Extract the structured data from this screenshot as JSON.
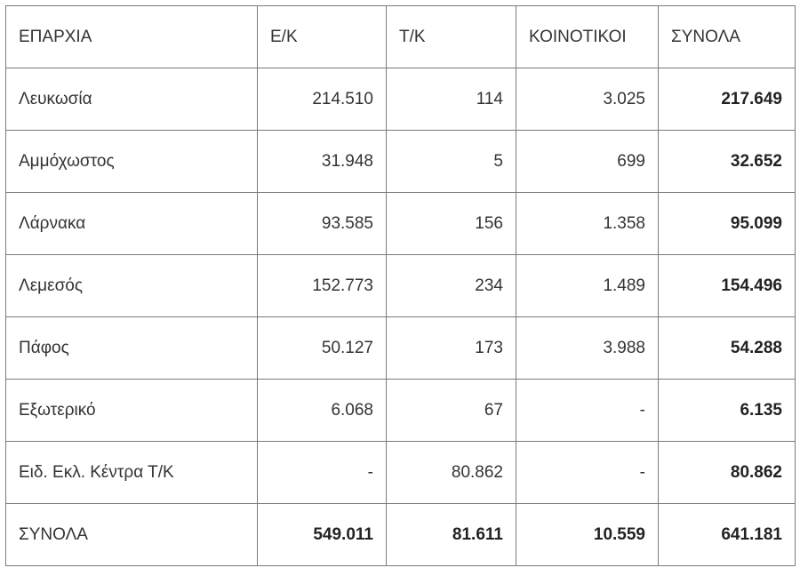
{
  "table": {
    "headers": [
      "ΕΠΑΡΧΙΑ",
      "Ε/Κ",
      "Τ/Κ",
      "ΚΟΙΝΟΤΙΚΟΙ",
      "ΣΥΝΟΛΑ"
    ],
    "rows": [
      [
        "Λευκωσία",
        "214.510",
        "114",
        "3.025",
        "217.649"
      ],
      [
        "Αμμόχωστος",
        "31.948",
        "5",
        "699",
        "32.652"
      ],
      [
        "Λάρνακα",
        "93.585",
        "156",
        "1.358",
        "95.099"
      ],
      [
        "Λεμεσός",
        "152.773",
        "234",
        "1.489",
        "154.496"
      ],
      [
        "Πάφος",
        "50.127",
        "173",
        "3.988",
        "54.288"
      ],
      [
        "Εξωτερικό",
        "6.068",
        "67",
        "-",
        "6.135"
      ],
      [
        "Ειδ. Εκλ. Κέντρα Τ/Κ",
        "-",
        "80.862",
        "-",
        "80.862"
      ]
    ],
    "totals": [
      "ΣΥΝΟΛΑ",
      "549.011",
      "81.611",
      "10.559",
      "641.181"
    ]
  }
}
